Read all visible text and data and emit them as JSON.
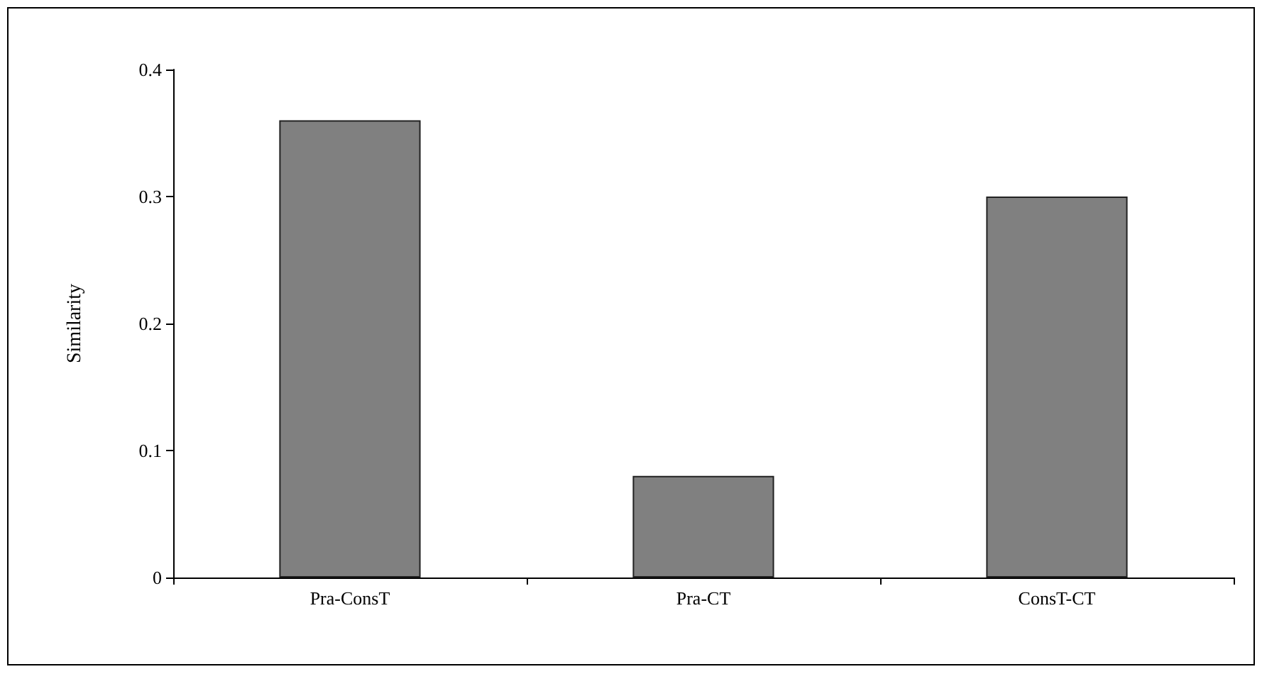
{
  "chart_data": {
    "type": "bar",
    "ylabel": "Similarity",
    "categories": [
      "Pra-ConsT",
      "Pra-CT",
      "ConsT-CT"
    ],
    "values": [
      0.36,
      0.08,
      0.3
    ],
    "color": "#808080",
    "ylim": [
      0,
      0.4
    ],
    "yticks": [
      0,
      0.1,
      0.2,
      0.3,
      0.4
    ],
    "grid": false
  }
}
